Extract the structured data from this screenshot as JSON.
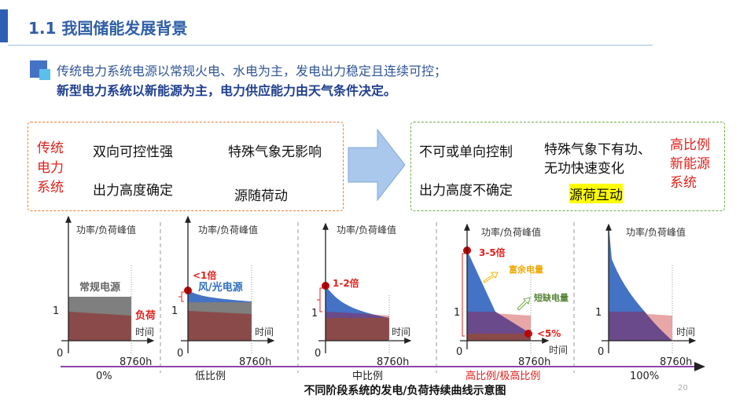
{
  "header": {
    "title": "1.1 我国储能发展背景"
  },
  "bullet": {
    "line1": "传统电力系统电源以常规火电、水电为主，发电出力稳定且连续可控；",
    "line2": "新型电力系统以新能源为主，电力供应能力由天气条件决定。"
  },
  "left_box": {
    "label": [
      "传统",
      "电力",
      "系统"
    ],
    "items": [
      "双向可控性强",
      "特殊气象无影响",
      "出力高度确定",
      "源随荷动"
    ]
  },
  "right_box": {
    "label": [
      "高比例",
      "新能源",
      "系统"
    ],
    "items": [
      "不可或单向控制",
      "特殊气象下有功、",
      "无功快速变化",
      "出力高度不确定",
      "源荷互动"
    ]
  },
  "charts": {
    "y_axis_label": "功率/负荷峰值",
    "x_axis_label": "时间",
    "x_end": "8760h",
    "one": "1",
    "zero": "0",
    "panels": [
      {
        "stage": "0%",
        "source_label": "常规电源",
        "load_label": "负荷"
      },
      {
        "stage": "低比例",
        "peak": "<1倍",
        "source_label": "风/光电源"
      },
      {
        "stage": "中比例",
        "peak": "1-2倍"
      },
      {
        "stage": "高比例/极高比例",
        "peak": "3-5倍",
        "surplus": "富余电量",
        "shortage": "短缺电量",
        "min": "<5%"
      },
      {
        "stage": "100%"
      }
    ],
    "caption": "不同阶段系统的发电/负荷持续曲线示意图"
  },
  "page_number": "20",
  "colors": {
    "accent": "#2f5fb3",
    "red": "#e0201b",
    "renewable": "#4472c4",
    "load": "#8b4a4a",
    "conventional": "#7f7f7f",
    "shortage": "#e8a6a6",
    "overlap": "#6a4a8a"
  }
}
